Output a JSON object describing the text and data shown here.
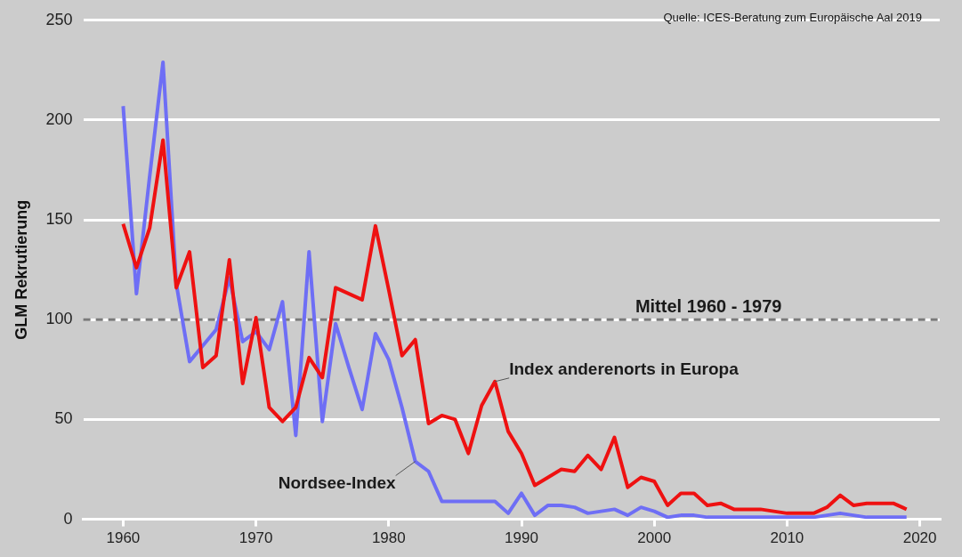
{
  "chart_data": {
    "type": "line",
    "ylabel": "GLM Rekrutierung",
    "x": [
      1960,
      1961,
      1962,
      1963,
      1964,
      1965,
      1966,
      1967,
      1968,
      1969,
      1970,
      1971,
      1972,
      1973,
      1974,
      1975,
      1976,
      1977,
      1978,
      1979,
      1980,
      1981,
      1982,
      1983,
      1984,
      1985,
      1986,
      1987,
      1988,
      1989,
      1990,
      1991,
      1992,
      1993,
      1994,
      1995,
      1996,
      1997,
      1998,
      1999,
      2000,
      2001,
      2002,
      2003,
      2004,
      2005,
      2006,
      2007,
      2008,
      2009,
      2010,
      2011,
      2012,
      2013,
      2014,
      2015,
      2016,
      2017,
      2018,
      2019
    ],
    "series": [
      {
        "name": "Nordsee-Index",
        "color": "#6e6ef5",
        "values": [
          207,
          113,
          172,
          229,
          118,
          79,
          87,
          95,
          121,
          89,
          94,
          85,
          109,
          42,
          134,
          49,
          98,
          76,
          55,
          93,
          80,
          56,
          29,
          24,
          9,
          9,
          9,
          9,
          9,
          3,
          13,
          2,
          7,
          7,
          6,
          3,
          4,
          5,
          2,
          6,
          4,
          1,
          2,
          2,
          1,
          1,
          1,
          1,
          1,
          1,
          1,
          1,
          1,
          2,
          3,
          2,
          1,
          1,
          1,
          1
        ]
      },
      {
        "name": "Index anderenorts in Europa",
        "color": "#ee1111",
        "values": [
          148,
          126,
          146,
          190,
          116,
          134,
          76,
          82,
          130,
          68,
          101,
          56,
          49,
          56,
          81,
          71,
          116,
          113,
          110,
          147,
          115,
          82,
          90,
          48,
          52,
          50,
          33,
          57,
          69,
          44,
          33,
          17,
          21,
          25,
          24,
          32,
          25,
          41,
          16,
          21,
          19,
          7,
          13,
          13,
          7,
          8,
          5,
          5,
          5,
          4,
          3,
          3,
          3,
          6,
          12,
          7,
          8,
          8,
          8,
          5
        ]
      }
    ],
    "xlim": [
      1957,
      2021.5
    ],
    "xticks": [
      1960,
      1970,
      1980,
      1990,
      2000,
      2010,
      2020
    ],
    "ylim": [
      0,
      250
    ],
    "yticks": [
      0,
      50,
      100,
      150,
      200,
      250
    ],
    "grid": "y",
    "legend": false,
    "marker": "none",
    "line_style": "solid",
    "ref_lines": [
      {
        "axis": "y",
        "value": 100,
        "label": "Mittel 1960 - 1979",
        "color": "#7a7a7a",
        "line_style": "dashed"
      }
    ],
    "annotations": [
      "Quelle: ICES-Beratung zum Europäische Aal 2019"
    ]
  }
}
